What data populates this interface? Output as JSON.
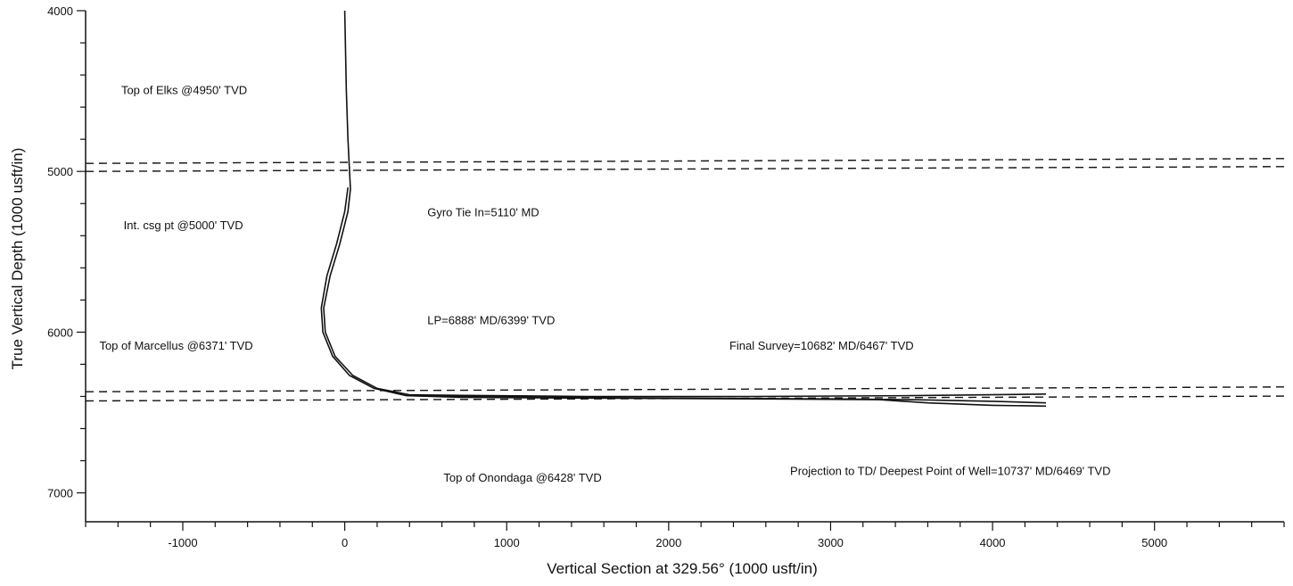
{
  "chart_data": {
    "type": "line",
    "title": "",
    "xlabel": "Vertical Section at 329.56° (1000 usft/in)",
    "ylabel": "True Vertical Depth (1000 usft/in)",
    "xlim": [
      -1600,
      5800
    ],
    "ylim": [
      7180,
      4000
    ],
    "y_inverted": true,
    "grid": false,
    "x_major_ticks": [
      -1000,
      0,
      1000,
      2000,
      3000,
      4000,
      5000
    ],
    "x_tick_labels": [
      "-1000",
      "0",
      "1000",
      "2000",
      "3000",
      "4000",
      "5000"
    ],
    "y_major_ticks": [
      4000,
      5000,
      6000,
      7000
    ],
    "y_tick_labels": [
      "4000",
      "5000",
      "6000",
      "7000"
    ],
    "x_minor_step": 200,
    "y_minor_step": 200,
    "colors": {
      "ink": "#111111",
      "background": "#ffffff"
    },
    "series": [
      {
        "line_style": "solid",
        "points": [
          [
            0,
            4000
          ],
          [
            10,
            4500
          ],
          [
            20,
            4800
          ],
          [
            30,
            5000
          ],
          [
            35,
            5110
          ],
          [
            20,
            5250
          ],
          [
            -30,
            5450
          ],
          [
            -90,
            5650
          ],
          [
            -130,
            5850
          ],
          [
            -120,
            6000
          ],
          [
            -60,
            6150
          ],
          [
            50,
            6270
          ],
          [
            200,
            6350
          ],
          [
            400,
            6390
          ],
          [
            700,
            6400
          ],
          [
            1200,
            6405
          ],
          [
            2000,
            6410
          ],
          [
            3000,
            6415
          ],
          [
            3500,
            6420
          ],
          [
            4000,
            6430
          ],
          [
            4330,
            6440
          ]
        ]
      },
      {
        "line_style": "solid",
        "points": [
          [
            20,
            5100
          ],
          [
            0,
            5250
          ],
          [
            -50,
            5450
          ],
          [
            -110,
            5650
          ],
          [
            -145,
            5850
          ],
          [
            -135,
            6000
          ],
          [
            -75,
            6150
          ],
          [
            30,
            6270
          ],
          [
            180,
            6350
          ],
          [
            380,
            6395
          ],
          [
            700,
            6405
          ],
          [
            1500,
            6410
          ],
          [
            2500,
            6415
          ],
          [
            3300,
            6420
          ],
          [
            3600,
            6440
          ],
          [
            4000,
            6455
          ],
          [
            4330,
            6460
          ]
        ]
      },
      {
        "line_style": "solid",
        "points": [
          [
            400,
            6390
          ],
          [
            1500,
            6400
          ],
          [
            2500,
            6400
          ],
          [
            3500,
            6395
          ],
          [
            4330,
            6385
          ]
        ]
      }
    ],
    "horizontons": [],
    "formation_lines": [
      {
        "style": "dashed",
        "left": [
          -1600,
          4950
        ],
        "right": [
          5800,
          4920
        ]
      },
      {
        "style": "dashed",
        "left": [
          -1600,
          5000
        ],
        "right": [
          5800,
          4970
        ]
      },
      {
        "style": "dashed",
        "left": [
          -1600,
          6371
        ],
        "right": [
          5800,
          6341
        ]
      },
      {
        "style": "dashed",
        "left": [
          -1600,
          6428
        ],
        "right": [
          5800,
          6398
        ]
      }
    ],
    "annotations": [
      {
        "text": "Top of Elks @4950' TVD",
        "x": -1380,
        "y": 4520
      },
      {
        "text": "Int. csg pt @5000' TVD",
        "x": -1365,
        "y": 5360
      },
      {
        "text": "Gyro Tie In=5110' MD",
        "x": 510,
        "y": 5280
      },
      {
        "text": "LP=6888' MD/6399' TVD",
        "x": 510,
        "y": 5950
      },
      {
        "text": "Top of Marcellus @6371' TVD",
        "x": -1515,
        "y": 6110
      },
      {
        "text": "Final Survey=10682' MD/6467' TVD",
        "x": 2375,
        "y": 6110
      },
      {
        "text": "Top of Onondaga @6428' TVD",
        "x": 610,
        "y": 6930
      },
      {
        "text": "Projection to TD/ Deepest Point of Well=10737' MD/6469' TVD",
        "x": 2750,
        "y": 6890
      }
    ]
  }
}
